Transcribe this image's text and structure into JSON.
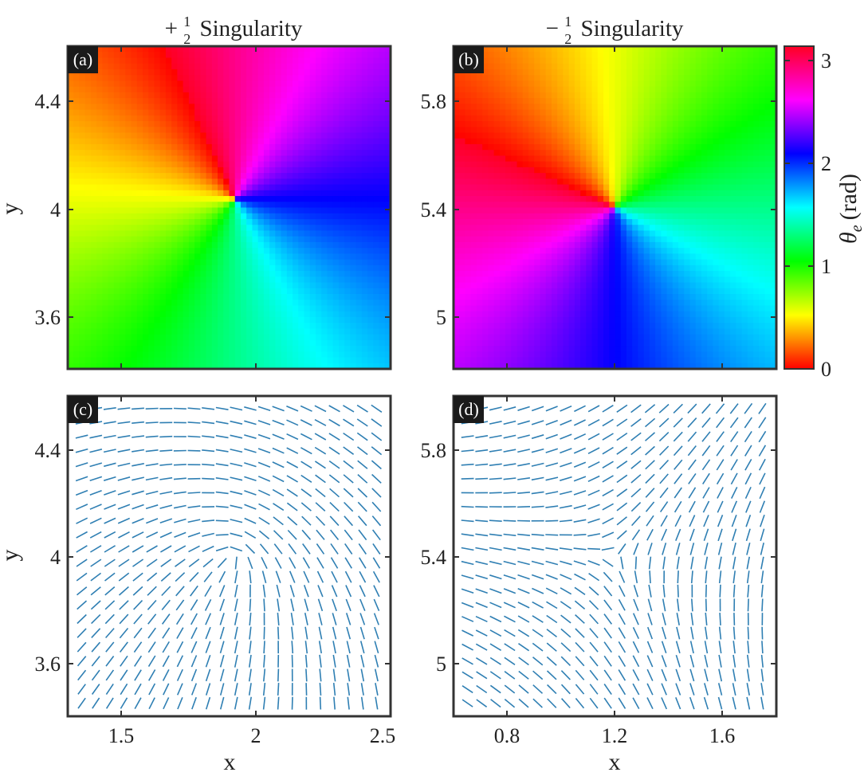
{
  "figure": {
    "panels": [
      {
        "id": "a",
        "label": "(a)",
        "title_sign": "+",
        "title_frac_num": "1",
        "title_frac_den": "2",
        "title_word": "Singularity"
      },
      {
        "id": "b",
        "label": "(b)",
        "title_sign": "−",
        "title_frac_num": "1",
        "title_frac_den": "2",
        "title_word": "Singularity"
      },
      {
        "id": "c",
        "label": "(c)"
      },
      {
        "id": "d",
        "label": "(d)"
      }
    ],
    "colorbar": {
      "label_symbol": "θ",
      "label_sub": "e",
      "label_unit": "(rad)",
      "ticks": [
        "0",
        "1",
        "2",
        "3"
      ]
    },
    "xlabel": "x",
    "ylabel": "y",
    "colors": {
      "frame": "#333333",
      "quiver": "#2f7fb3",
      "label_bg": "#1a1a1a"
    }
  },
  "chart_data": [
    {
      "panel": "(a)",
      "type": "heatmap",
      "title": "+ 1/2 Singularity",
      "xlim": [
        1.3,
        2.5
      ],
      "ylim": [
        3.4,
        4.6
      ],
      "yticks": [
        "3.6",
        "4",
        "4.4"
      ],
      "ylabel": "y",
      "singularity": {
        "x": 1.92,
        "y": 4.03,
        "charge": 0.5
      },
      "colorscale": "hsv",
      "zlim": [
        0,
        3.14159
      ]
    },
    {
      "panel": "(b)",
      "type": "heatmap",
      "title": "− 1/2 Singularity",
      "xlim": [
        0.6,
        1.8
      ],
      "ylim": [
        4.8,
        6.0
      ],
      "yticks": [
        "5",
        "5.4",
        "5.8"
      ],
      "singularity": {
        "x": 1.2,
        "y": 5.4,
        "charge": -0.5
      },
      "colorscale": "hsv",
      "zlim": [
        0,
        3.14159
      ],
      "colorbar_label": "θe (rad)",
      "colorbar_ticks": [
        0,
        1,
        2,
        3
      ]
    },
    {
      "panel": "(c)",
      "type": "scatter",
      "style": "director-field",
      "xlim": [
        1.3,
        2.5
      ],
      "ylim": [
        3.4,
        4.6
      ],
      "xticks": [
        "1.5",
        "2",
        "2.5"
      ],
      "yticks": [
        "3.6",
        "4",
        "4.4"
      ],
      "xlabel": "x",
      "ylabel": "y",
      "singularity": {
        "x": 1.92,
        "y": 4.0,
        "charge": 0.5
      }
    },
    {
      "panel": "(d)",
      "type": "scatter",
      "style": "director-field",
      "xlim": [
        0.6,
        1.8
      ],
      "ylim": [
        4.8,
        6.0
      ],
      "xticks": [
        "0.8",
        "1.2",
        "1.6"
      ],
      "yticks": [
        "5",
        "5.4",
        "5.8"
      ],
      "xlabel": "x",
      "singularity": {
        "x": 1.2,
        "y": 5.4,
        "charge": -0.5
      }
    }
  ]
}
